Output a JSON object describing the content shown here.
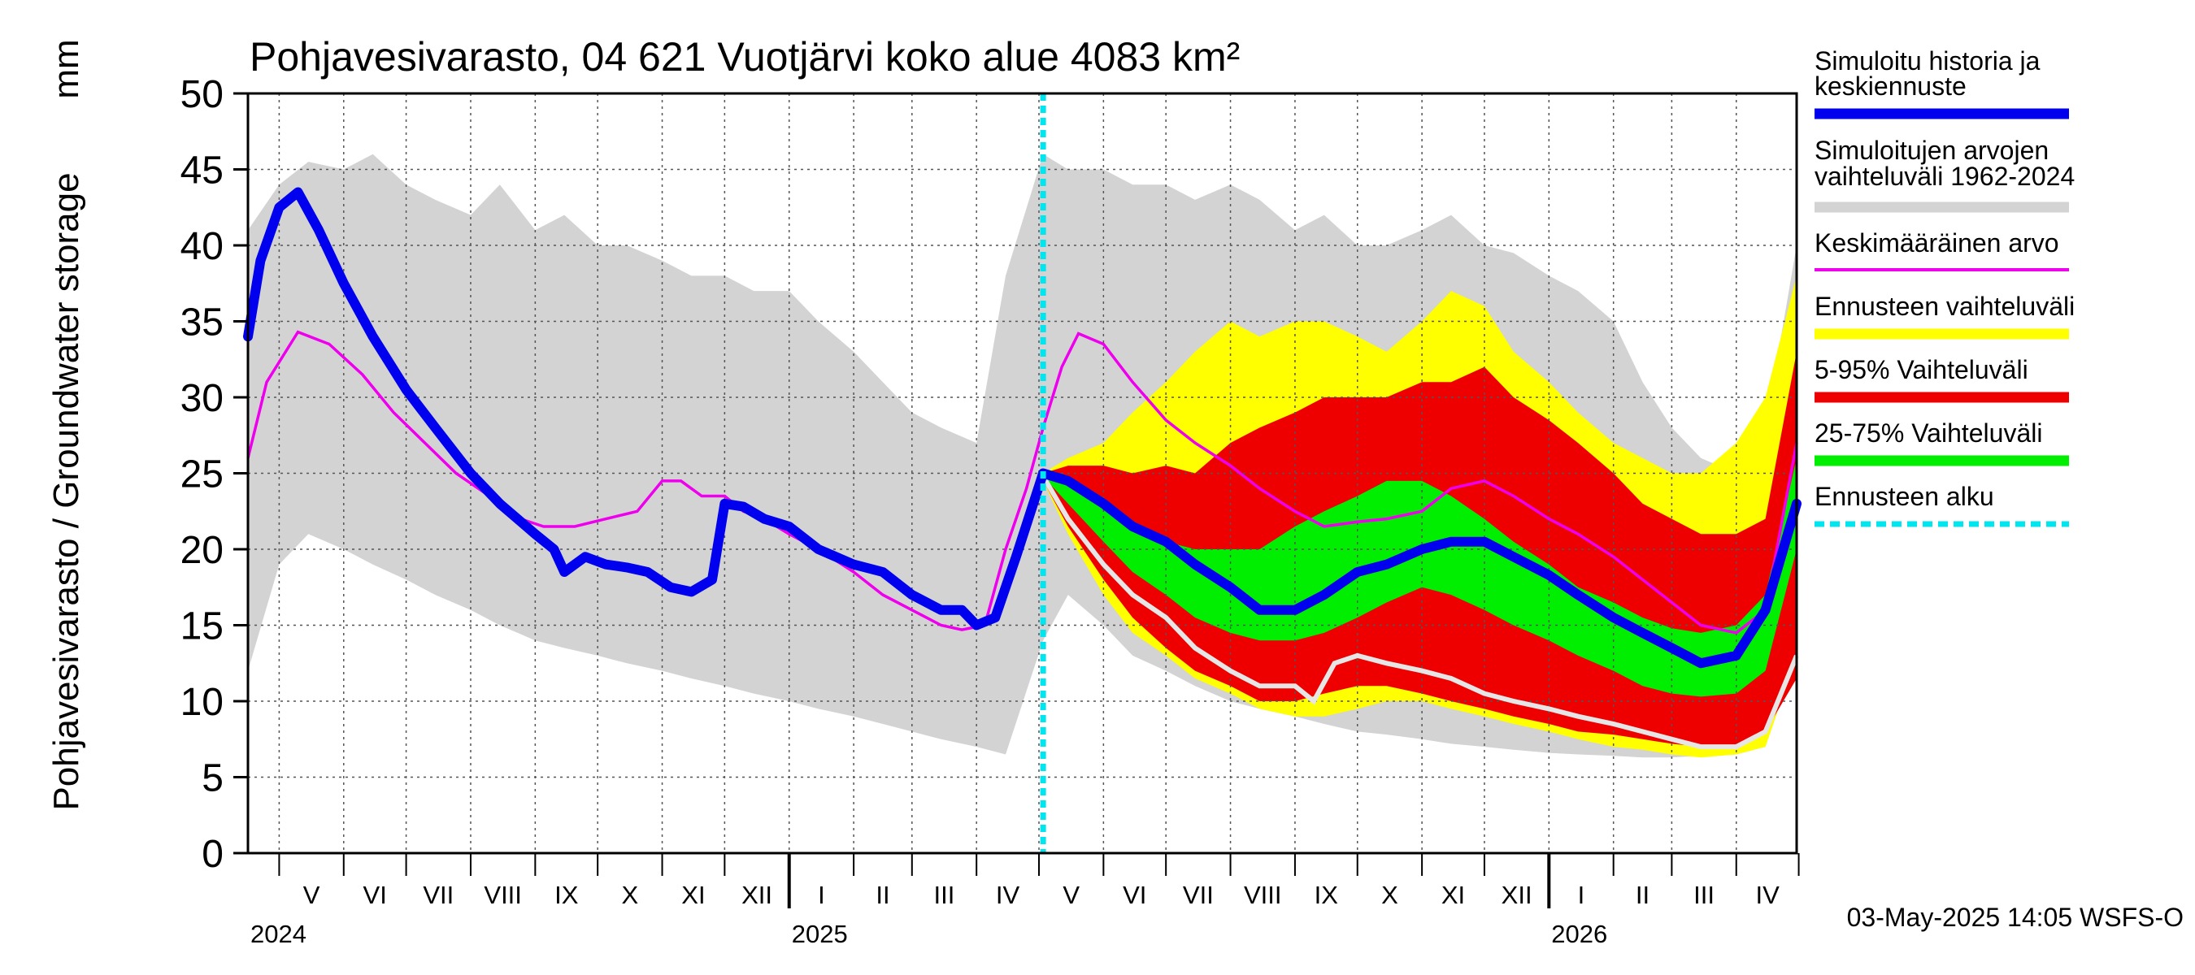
{
  "chart_data": {
    "type": "area",
    "title": "Pohjavesivarasto, 04 621 Vuotjärvi koko alue 4083 km²",
    "ylabel": "Pohjavesivarasto / Groundwater storage",
    "yunit": "mm",
    "ylim": [
      0,
      50
    ],
    "yticks": [
      0,
      5,
      10,
      15,
      20,
      25,
      30,
      35,
      40,
      45,
      50
    ],
    "x_range": [
      "2024-04-16",
      "2026-04-30"
    ],
    "forecast_start": "2025-05-03",
    "grid": true,
    "legend_position": "right",
    "month_labels": [
      "V",
      "VI",
      "VII",
      "VIII",
      "IX",
      "X",
      "XI",
      "XII",
      "I",
      "II",
      "III",
      "IV",
      "V",
      "VI",
      "VII",
      "VIII",
      "IX",
      "X",
      "XI",
      "XII",
      "I",
      "II",
      "III",
      "IV"
    ],
    "year_labels": [
      "2024",
      "2025",
      "2026"
    ],
    "legend": [
      {
        "label": "Simuloitu historia ja keskiennuste",
        "color": "#0000ee"
      },
      {
        "label": "Simuloitujen arvojen vaihteluväli 1962-2024",
        "color": "#d3d3d3"
      },
      {
        "label": "Keskimääräinen arvo",
        "color": "#ee00ee"
      },
      {
        "label": "Ennusteen vaihteluväli",
        "color": "#ffff00"
      },
      {
        "label": "5-95% Vaihteluväli",
        "color": "#ee0000"
      },
      {
        "label": "25-75% Vaihteluväli",
        "color": "#00ee00"
      },
      {
        "label": "Ennusteen alku",
        "color": "#00e5ee"
      }
    ],
    "sim_range": {
      "x": [
        "2024-04-16",
        "2024-05-01",
        "2024-05-15",
        "2024-06-01",
        "2024-06-15",
        "2024-07-01",
        "2024-07-15",
        "2024-08-01",
        "2024-08-15",
        "2024-09-01",
        "2024-09-15",
        "2024-10-01",
        "2024-10-15",
        "2024-11-01",
        "2024-11-15",
        "2024-12-01",
        "2024-12-15",
        "2025-01-01",
        "2025-01-15",
        "2025-02-01",
        "2025-02-15",
        "2025-03-01",
        "2025-03-15",
        "2025-04-01",
        "2025-04-15",
        "2025-05-03",
        "2025-05-15",
        "2025-06-01",
        "2025-06-15",
        "2025-07-01",
        "2025-07-15",
        "2025-08-01",
        "2025-08-15",
        "2025-09-01",
        "2025-09-15",
        "2025-10-01",
        "2025-10-15",
        "2025-11-01",
        "2025-11-15",
        "2025-12-01",
        "2025-12-15",
        "2026-01-01",
        "2026-01-15",
        "2026-02-01",
        "2026-02-15",
        "2026-03-01",
        "2026-03-15",
        "2026-04-01",
        "2026-04-15",
        "2026-04-30"
      ],
      "low": [
        12,
        19,
        21,
        20,
        19,
        18,
        17,
        16,
        15,
        14,
        13.5,
        13,
        12.5,
        12,
        11.5,
        11,
        10.5,
        10,
        9.5,
        9,
        8.5,
        8,
        7.5,
        7,
        6.5,
        14,
        17,
        15,
        13,
        12,
        11,
        10,
        9.5,
        9,
        8.5,
        8,
        7.8,
        7.5,
        7.2,
        7,
        6.8,
        6.6,
        6.5,
        6.4,
        6.3,
        6.3,
        6.4,
        6.5,
        7,
        13
      ],
      "high": [
        41,
        44,
        45.5,
        45,
        46,
        44,
        43,
        42,
        44,
        41,
        42,
        40,
        40,
        39,
        38,
        38,
        37,
        37,
        35,
        33,
        31,
        29,
        28,
        27,
        38,
        46,
        45,
        45,
        44,
        44,
        43,
        44,
        43,
        41,
        42,
        40,
        40,
        41,
        42,
        40,
        39.5,
        38,
        37,
        35,
        31,
        28,
        26,
        25,
        28,
        40
      ]
    },
    "forecast_yellow": {
      "x": [
        "2025-05-03",
        "2025-05-15",
        "2025-06-01",
        "2025-06-15",
        "2025-07-01",
        "2025-07-15",
        "2025-08-01",
        "2025-08-15",
        "2025-09-01",
        "2025-09-15",
        "2025-10-01",
        "2025-10-15",
        "2025-11-01",
        "2025-11-15",
        "2025-12-01",
        "2025-12-15",
        "2026-01-01",
        "2026-01-15",
        "2026-02-01",
        "2026-02-15",
        "2026-03-01",
        "2026-03-15",
        "2026-04-01",
        "2026-04-15",
        "2026-04-30"
      ],
      "low": [
        24.5,
        21,
        17,
        14.5,
        13,
        11.5,
        10.5,
        9.5,
        9,
        9,
        9.5,
        10,
        10,
        9.5,
        9,
        8.5,
        8,
        7.5,
        7,
        6.8,
        6.5,
        6.3,
        6.5,
        7,
        13
      ],
      "high": [
        25,
        26,
        27,
        29,
        31,
        33,
        35,
        34,
        35,
        35,
        34,
        33,
        35,
        37,
        36,
        33,
        31,
        29,
        27,
        26,
        25,
        25,
        27,
        30,
        38
      ]
    },
    "forecast_red": {
      "x": [
        "2025-05-03",
        "2025-05-15",
        "2025-06-01",
        "2025-06-15",
        "2025-07-01",
        "2025-07-15",
        "2025-08-01",
        "2025-08-15",
        "2025-09-01",
        "2025-09-15",
        "2025-10-01",
        "2025-10-15",
        "2025-11-01",
        "2025-11-15",
        "2025-12-01",
        "2025-12-15",
        "2026-01-01",
        "2026-01-15",
        "2026-02-01",
        "2026-02-15",
        "2026-03-01",
        "2026-03-15",
        "2026-04-01",
        "2026-04-15",
        "2026-04-30"
      ],
      "low": [
        24.5,
        21.5,
        18,
        15.5,
        13.5,
        12,
        11,
        10,
        10,
        10.5,
        11,
        11,
        10.5,
        10,
        9.5,
        9,
        8.5,
        8,
        7.8,
        7.5,
        7.2,
        7,
        7,
        8,
        11.5
      ],
      "high": [
        25,
        25.5,
        25.5,
        25,
        25.5,
        25,
        27,
        28,
        29,
        30,
        30,
        30,
        31,
        31,
        32,
        30,
        28.5,
        27,
        25,
        23,
        22,
        21,
        21,
        22,
        33
      ]
    },
    "forecast_green": {
      "x": [
        "2025-05-03",
        "2025-05-15",
        "2025-06-01",
        "2025-06-15",
        "2025-07-01",
        "2025-07-15",
        "2025-08-01",
        "2025-08-15",
        "2025-09-01",
        "2025-09-15",
        "2025-10-01",
        "2025-10-15",
        "2025-11-01",
        "2025-11-15",
        "2025-12-01",
        "2025-12-15",
        "2026-01-01",
        "2026-01-15",
        "2026-02-01",
        "2026-02-15",
        "2026-03-01",
        "2026-03-15",
        "2026-04-01",
        "2026-04-15",
        "2026-04-30"
      ],
      "low": [
        24.8,
        23,
        20.5,
        18.5,
        17,
        15.5,
        14.5,
        14,
        14,
        14.5,
        15.5,
        16.5,
        17.5,
        17,
        16,
        15,
        14,
        13,
        12,
        11,
        10.5,
        10.3,
        10.5,
        12,
        20
      ],
      "high": [
        25,
        24.5,
        23,
        21.5,
        20.5,
        20,
        20,
        20,
        21.5,
        22.5,
        23.5,
        24.5,
        24.5,
        23.5,
        22,
        20.5,
        19,
        17.5,
        16.5,
        15.5,
        14.8,
        14.5,
        15,
        17,
        26
      ]
    },
    "min_line": {
      "x": [
        "2025-05-03",
        "2025-05-15",
        "2025-06-01",
        "2025-06-15",
        "2025-07-01",
        "2025-07-15",
        "2025-08-01",
        "2025-08-15",
        "2025-09-01",
        "2025-09-10",
        "2025-09-20",
        "2025-10-01",
        "2025-10-15",
        "2025-11-01",
        "2025-11-15",
        "2025-12-01",
        "2025-12-15",
        "2026-01-01",
        "2026-01-15",
        "2026-02-01",
        "2026-02-15",
        "2026-03-01",
        "2026-03-15",
        "2026-04-01",
        "2026-04-15",
        "2026-04-30"
      ],
      "y": [
        24.8,
        22,
        19,
        17,
        15.5,
        13.5,
        12,
        11,
        11,
        10,
        12.5,
        13,
        12.5,
        12,
        11.5,
        10.5,
        10,
        9.5,
        9,
        8.5,
        8,
        7.5,
        7,
        7,
        8,
        13
      ]
    },
    "mean_line": {
      "x": [
        "2024-04-16",
        "2024-04-25",
        "2024-05-10",
        "2024-05-25",
        "2024-06-10",
        "2024-06-25",
        "2024-07-10",
        "2024-07-25",
        "2024-08-10",
        "2024-08-25",
        "2024-09-05",
        "2024-09-20",
        "2024-10-05",
        "2024-10-20",
        "2024-11-01",
        "2024-11-10",
        "2024-11-20",
        "2024-12-01",
        "2024-12-10",
        "2024-12-20",
        "2025-01-01",
        "2025-01-15",
        "2025-02-01",
        "2025-02-15",
        "2025-03-01",
        "2025-03-15",
        "2025-03-25",
        "2025-04-05",
        "2025-04-15",
        "2025-04-25",
        "2025-05-03",
        "2025-05-12",
        "2025-05-20",
        "2025-06-01",
        "2025-06-15",
        "2025-07-01",
        "2025-07-15",
        "2025-08-01",
        "2025-08-15",
        "2025-09-01",
        "2025-09-15",
        "2025-10-01",
        "2025-10-15",
        "2025-11-01",
        "2025-11-15",
        "2025-12-01",
        "2025-12-15",
        "2026-01-01",
        "2026-01-15",
        "2026-02-01",
        "2026-02-15",
        "2026-03-01",
        "2026-03-15",
        "2026-04-01",
        "2026-04-15",
        "2026-04-30"
      ],
      "y": [
        26,
        31,
        34.3,
        33.5,
        31.5,
        29,
        27,
        25,
        23.5,
        22,
        21.5,
        21.5,
        22,
        22.5,
        24.5,
        24.5,
        23.5,
        23.5,
        22.5,
        22,
        21,
        20,
        18.5,
        17,
        16,
        15,
        14.7,
        15,
        20,
        24,
        28,
        32,
        34.2,
        33.5,
        31,
        28.5,
        27,
        25.5,
        24,
        22.5,
        21.5,
        21.8,
        22,
        22.5,
        24,
        24.5,
        23.5,
        22,
        21,
        19.5,
        18,
        16.5,
        15,
        14.5,
        16,
        27
      ]
    },
    "main_line": {
      "x": [
        "2024-04-16",
        "2024-04-22",
        "2024-05-01",
        "2024-05-10",
        "2024-05-20",
        "2024-06-01",
        "2024-06-15",
        "2024-07-01",
        "2024-07-15",
        "2024-08-01",
        "2024-08-15",
        "2024-09-01",
        "2024-09-10",
        "2024-09-15",
        "2024-09-25",
        "2024-10-05",
        "2024-10-15",
        "2024-10-25",
        "2024-11-05",
        "2024-11-15",
        "2024-11-25",
        "2024-12-01",
        "2024-12-10",
        "2024-12-20",
        "2025-01-01",
        "2025-01-15",
        "2025-02-01",
        "2025-02-15",
        "2025-03-01",
        "2025-03-15",
        "2025-03-25",
        "2025-04-01",
        "2025-04-10",
        "2025-04-20",
        "2025-05-03",
        "2025-05-15",
        "2025-06-01",
        "2025-06-15",
        "2025-07-01",
        "2025-07-15",
        "2025-08-01",
        "2025-08-15",
        "2025-09-01",
        "2025-09-15",
        "2025-10-01",
        "2025-10-15",
        "2025-11-01",
        "2025-11-15",
        "2025-12-01",
        "2025-12-15",
        "2026-01-01",
        "2026-01-15",
        "2026-02-01",
        "2026-02-15",
        "2026-03-01",
        "2026-03-15",
        "2026-04-01",
        "2026-04-15",
        "2026-04-30"
      ],
      "y": [
        34,
        39,
        42.5,
        43.5,
        41,
        37.5,
        34,
        30.5,
        28,
        25,
        23,
        21,
        20,
        18.5,
        19.5,
        19,
        18.8,
        18.5,
        17.5,
        17.2,
        18,
        23,
        22.8,
        22,
        21.5,
        20,
        19,
        18.5,
        17,
        16,
        16,
        15,
        15.5,
        19.5,
        25,
        24.5,
        23,
        21.5,
        20.5,
        19,
        17.5,
        16,
        16,
        17,
        18.5,
        19,
        20,
        20.5,
        20.5,
        19.5,
        18.3,
        17,
        15.5,
        14.5,
        13.5,
        12.5,
        13,
        16,
        23
      ]
    }
  }
}
